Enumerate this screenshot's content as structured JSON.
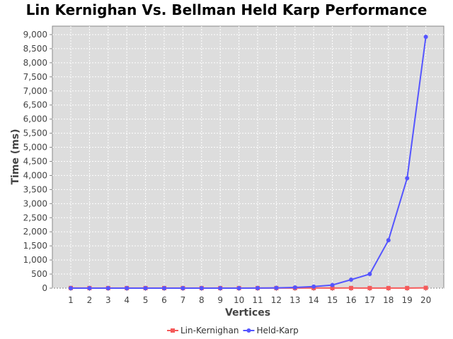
{
  "chart_data": {
    "type": "line",
    "title": "Lin Kernighan Vs. Bellman Held Karp Performance",
    "xlabel": "Vertices",
    "ylabel": "Time (ms)",
    "x": [
      "1",
      "2",
      "3",
      "4",
      "5",
      "6",
      "7",
      "8",
      "9",
      "10",
      "11",
      "12",
      "13",
      "14",
      "15",
      "16",
      "17",
      "18",
      "19",
      "20"
    ],
    "ylim": [
      0,
      9300
    ],
    "yticks": [
      0,
      500,
      1000,
      1500,
      2000,
      2500,
      3000,
      3500,
      4000,
      4500,
      5000,
      5500,
      6000,
      6500,
      7000,
      7500,
      8000,
      8500,
      9000
    ],
    "ytick_labels": [
      "0",
      "500",
      "1,000",
      "1,500",
      "2,000",
      "2,500",
      "3,000",
      "3,500",
      "4,000",
      "4,500",
      "5,000",
      "5,500",
      "6,000",
      "6,500",
      "7,000",
      "7,500",
      "8,000",
      "8,500",
      "9,000"
    ],
    "grid": true,
    "legend_position": "bottom",
    "series": [
      {
        "name": "Lin-Kernighan",
        "color": "#f55a5a",
        "marker": "square",
        "values": [
          5,
          3,
          2,
          2,
          2,
          2,
          2,
          2,
          2,
          2,
          3,
          3,
          3,
          4,
          3,
          4,
          3,
          2,
          3,
          10
        ]
      },
      {
        "name": "Held-Karp",
        "color": "#5555ff",
        "marker": "circle",
        "values": [
          0,
          0,
          0,
          0,
          0,
          0,
          0,
          0,
          0,
          1,
          3,
          10,
          25,
          55,
          110,
          300,
          500,
          1700,
          3900,
          8920
        ]
      }
    ]
  }
}
